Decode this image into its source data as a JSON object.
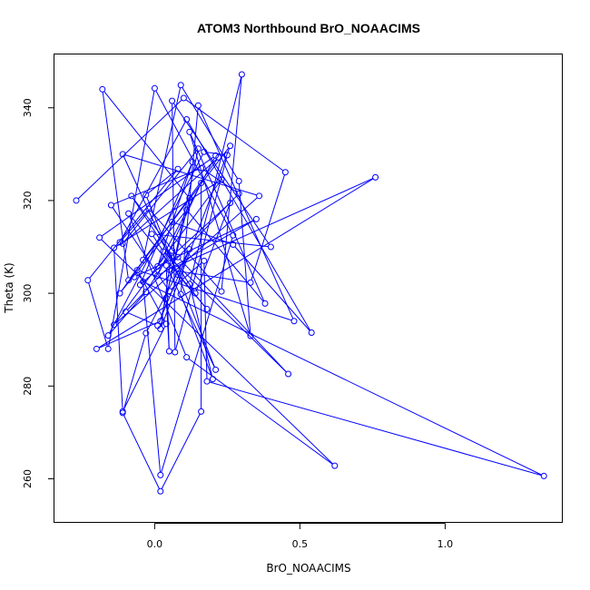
{
  "chart_data": {
    "type": "line",
    "title": "ATOM3 Northbound BrO_NOAACIMS",
    "xlabel": "BrO_NOAACIMS",
    "ylabel": "Theta (K)",
    "xlim": [
      -0.345,
      1.405
    ],
    "ylim": [
      250.5,
      351.5
    ],
    "x_ticks": [
      0.0,
      0.5,
      1.0
    ],
    "x_tick_labels": [
      "0.0",
      "0.5",
      "1.0"
    ],
    "y_ticks": [
      260,
      280,
      300,
      320,
      340
    ],
    "y_tick_labels": [
      "260",
      "280",
      "300",
      "320",
      "340"
    ],
    "grid": false,
    "legend": "none",
    "line_color": "#0000ff",
    "marker": "open-circle",
    "series": [
      {
        "points": [
          [
            -0.27,
            320.0
          ],
          [
            0.1,
            342.1
          ],
          [
            0.45,
            326.1
          ],
          [
            0.33,
            302.3
          ],
          [
            0.05,
            305.1
          ],
          [
            0.76,
            325.0
          ],
          [
            -0.2,
            288.0
          ],
          [
            0.02,
            294.0
          ],
          [
            0.12,
            320.5
          ],
          [
            -0.18,
            344.0
          ],
          [
            -0.09,
            302.8
          ],
          [
            0.06,
            315.4
          ],
          [
            0.27,
            310.5
          ],
          [
            0.54,
            291.5
          ],
          [
            0.11,
            337.5
          ],
          [
            -0.12,
            311.0
          ],
          [
            -0.02,
            318.2
          ],
          [
            0.23,
            300.4
          ],
          [
            0.3,
            347.2
          ],
          [
            0.12,
            302.0
          ],
          [
            0.2,
            281.5
          ],
          [
            0.09,
            299.8
          ],
          [
            0.15,
            340.5
          ],
          [
            0.48,
            294.0
          ],
          [
            -0.06,
            305.0
          ],
          [
            0.04,
            293.4
          ],
          [
            -0.11,
            274.5
          ],
          [
            -0.14,
            309.8
          ],
          [
            0.23,
            324.5
          ],
          [
            -0.14,
            293.2
          ],
          [
            0.36,
            321.0
          ],
          [
            -0.11,
            330.0
          ],
          [
            0.08,
            304.0
          ],
          [
            0.18,
            296.6
          ],
          [
            -0.09,
            317.2
          ],
          [
            0.11,
            286.2
          ],
          [
            0.62,
            262.8
          ],
          [
            -0.19,
            312.0
          ],
          [
            0.21,
            329.7
          ],
          [
            0.01,
            305.8
          ],
          [
            0.13,
            328.3
          ],
          [
            -0.05,
            301.8
          ],
          [
            0.26,
            319.5
          ],
          [
            0.14,
            300.0
          ],
          [
            -0.08,
            321.0
          ],
          [
            0.08,
            307.8
          ],
          [
            0.46,
            282.6
          ],
          [
            0.03,
            309.0
          ],
          [
            -0.01,
            312.8
          ],
          [
            0.4,
            310.0
          ],
          [
            0.06,
            341.5
          ],
          [
            0.07,
            287.3
          ],
          [
            0.25,
            329.8
          ],
          [
            0.17,
            330.5
          ],
          [
            -0.16,
            290.9
          ],
          [
            -0.03,
            300.3
          ],
          [
            0.06,
            309.2
          ],
          [
            0.02,
            292.3
          ],
          [
            0.26,
            331.8
          ],
          [
            -0.04,
            307.2
          ],
          [
            0.09,
            344.9
          ],
          [
            0.29,
            324.2
          ],
          [
            0.33,
            290.8
          ],
          [
            0.12,
            334.8
          ],
          [
            0.38,
            297.8
          ],
          [
            0.11,
            318.0
          ],
          [
            -0.12,
            300.0
          ],
          [
            0.22,
            329.3
          ],
          [
            -0.11,
            310.7
          ],
          [
            0.15,
            331.2
          ],
          [
            0.04,
            299.0
          ],
          [
            0.05,
            287.5
          ],
          [
            0.04,
            306.0
          ],
          [
            0.21,
            283.5
          ],
          [
            -0.03,
            321.2
          ],
          [
            0.08,
            326.8
          ],
          [
            -0.23,
            302.8
          ],
          [
            -0.16,
            288.0
          ],
          [
            0.0,
            344.2
          ],
          [
            0.27,
            312.5
          ],
          [
            0.02,
            260.8
          ],
          [
            -0.04,
            302.5
          ],
          [
            1.34,
            260.6
          ],
          [
            0.18,
            281.0
          ],
          [
            0.17,
            307.0
          ],
          [
            0.05,
            300.5
          ],
          [
            -0.15,
            319.0
          ],
          [
            0.16,
            327.0
          ],
          [
            0.29,
            321.5
          ],
          [
            -0.1,
            296.0
          ],
          [
            0.01,
            293.0
          ],
          [
            0.12,
            309.5
          ],
          [
            -0.03,
            291.4
          ],
          [
            -0.11,
            274.2
          ],
          [
            0.02,
            257.3
          ],
          [
            0.16,
            274.5
          ],
          [
            0.16,
            323.8
          ],
          [
            0.01,
            303.8
          ],
          [
            0.35,
            316.0
          ],
          [
            -0.07,
            303.5
          ]
        ]
      }
    ]
  }
}
